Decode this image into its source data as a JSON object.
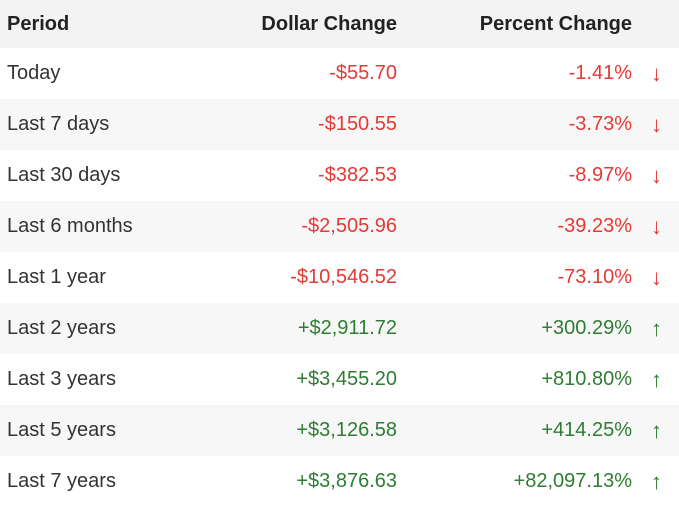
{
  "header": {
    "period": "Period",
    "dollar_change": "Dollar Change",
    "percent_change": "Percent Change"
  },
  "colors": {
    "negative": "#e53935",
    "positive": "#2e7d32"
  },
  "rows": [
    {
      "period": "Today",
      "dollar": "-$55.70",
      "percent": "-1.41%",
      "direction": "down",
      "arrow": "↓"
    },
    {
      "period": "Last 7 days",
      "dollar": "-$150.55",
      "percent": "-3.73%",
      "direction": "down",
      "arrow": "↓"
    },
    {
      "period": "Last 30 days",
      "dollar": "-$382.53",
      "percent": "-8.97%",
      "direction": "down",
      "arrow": "↓"
    },
    {
      "period": "Last 6 months",
      "dollar": "-$2,505.96",
      "percent": "-39.23%",
      "direction": "down",
      "arrow": "↓"
    },
    {
      "period": "Last 1 year",
      "dollar": "-$10,546.52",
      "percent": "-73.10%",
      "direction": "down",
      "arrow": "↓"
    },
    {
      "period": "Last 2 years",
      "dollar": "+$2,911.72",
      "percent": "+300.29%",
      "direction": "up",
      "arrow": "↑"
    },
    {
      "period": "Last 3 years",
      "dollar": "+$3,455.20",
      "percent": "+810.80%",
      "direction": "up",
      "arrow": "↑"
    },
    {
      "period": "Last 5 years",
      "dollar": "+$3,126.58",
      "percent": "+414.25%",
      "direction": "up",
      "arrow": "↑"
    },
    {
      "period": "Last 7 years",
      "dollar": "+$3,876.63",
      "percent": "+82,097.13%",
      "direction": "up",
      "arrow": "↑"
    }
  ]
}
